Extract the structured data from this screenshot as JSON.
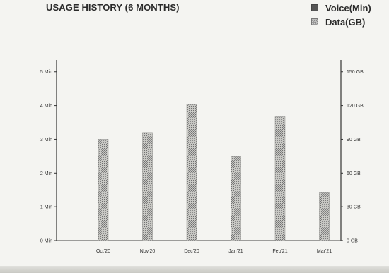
{
  "chart_data": {
    "type": "bar",
    "title": "USAGE HISTORY (6 MONTHS)",
    "categories": [
      "Oct'20",
      "Nov'20",
      "Dec'20",
      "Jan'21",
      "Feb'21",
      "Mar'21"
    ],
    "series": [
      {
        "name": "Voice(Min)",
        "values": [
          0,
          0,
          0,
          0,
          0,
          0
        ]
      },
      {
        "name": "Data(GB)",
        "values": [
          90,
          96,
          121,
          75,
          110,
          43
        ]
      }
    ],
    "y_left": {
      "ticks": [
        "0 Min",
        "1 Min",
        "2 Min",
        "3 Min",
        "4 Min",
        "5 Min"
      ],
      "ylim": [
        0,
        5
      ]
    },
    "y_right": {
      "ticks": [
        "0 GB",
        "30 GB",
        "60 GB",
        "90 GB",
        "120 GB",
        "150 GB"
      ],
      "ylim": [
        0,
        150
      ]
    },
    "legend_position": "top-right",
    "grid": false,
    "colors": {
      "voice": "#555555",
      "data": "#9a9a9a"
    }
  }
}
